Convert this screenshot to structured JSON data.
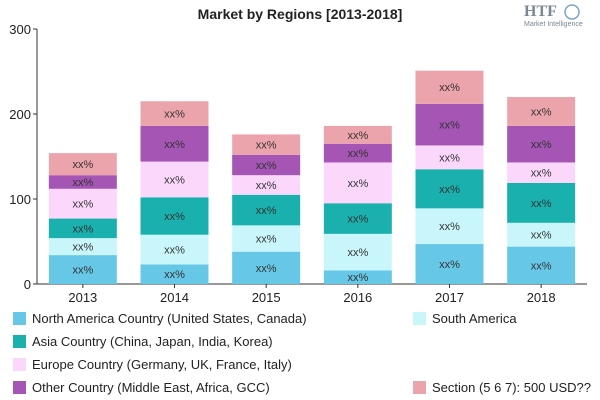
{
  "chart_data": {
    "type": "bar",
    "stacked": true,
    "title": "Market by Regions [2013-2018]",
    "xlabel": "",
    "ylabel": "",
    "ylim": [
      0,
      300
    ],
    "yticks": [
      0,
      100,
      200,
      300
    ],
    "grid": false,
    "legend_position": "bottom",
    "categories": [
      "2013",
      "2014",
      "2015",
      "2016",
      "2017",
      "2018"
    ],
    "segment_label": "xx%",
    "series": [
      {
        "name": "North America Country (United States, Canada)",
        "color": "#66c8e6",
        "values": [
          34,
          23,
          38,
          16,
          47,
          44
        ]
      },
      {
        "name": "South America",
        "color": "#c8f6fa",
        "values": [
          20,
          35,
          31,
          43,
          42,
          28
        ]
      },
      {
        "name": "Asia Country (China, Japan, India, Korea)",
        "color": "#19b0ad",
        "values": [
          23,
          44,
          36,
          36,
          46,
          47
        ]
      },
      {
        "name": "Europe Country (Germany, UK, France, Italy)",
        "color": "#fbd8fb",
        "values": [
          35,
          42,
          23,
          48,
          28,
          24
        ]
      },
      {
        "name": "Other Country (Middle East, Africa, GCC)",
        "color": "#a555b3",
        "values": [
          16,
          42,
          24,
          22,
          49,
          43
        ]
      },
      {
        "name": "Section (5 6 7): 500 USD??",
        "color": "#eca4ac",
        "values": [
          26,
          29,
          24,
          21,
          39,
          34
        ]
      }
    ]
  },
  "logo": {
    "name": "HTF",
    "sub": "Market Intelligence"
  }
}
